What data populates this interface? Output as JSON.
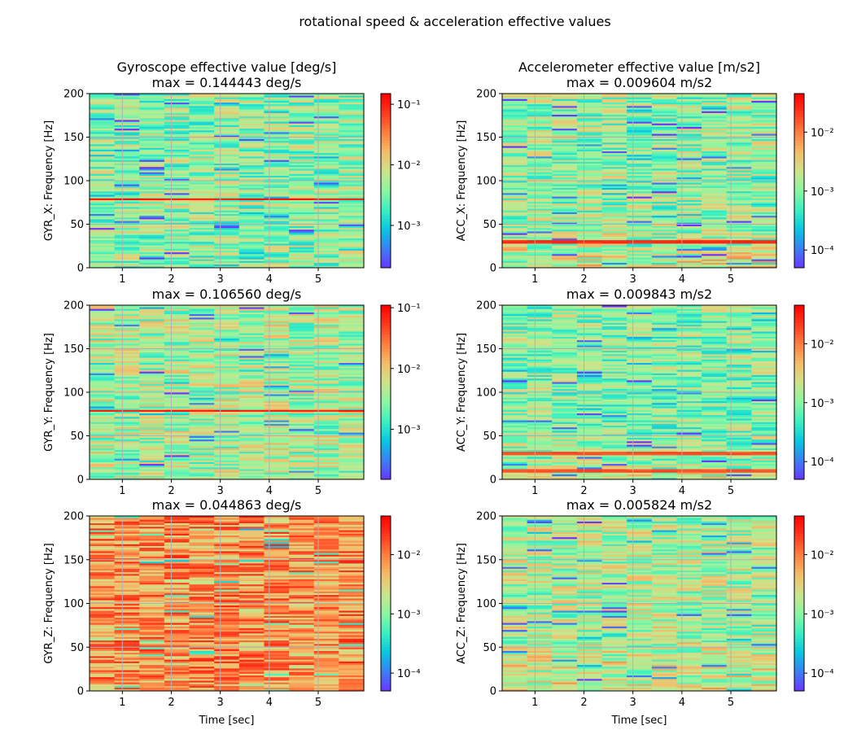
{
  "figure": {
    "suptitle": "rotational speed & acceleration effective values"
  },
  "colormap": [
    "#6a35ff",
    "#3a7ff5",
    "#06c8e0",
    "#3cf0c2",
    "#8cf6a0",
    "#cce48b",
    "#f3bd6a",
    "#ff7e40",
    "#ff3a1e",
    "#ff0000"
  ],
  "grid_color": "#b0b0b0",
  "chart_data": [
    {
      "type": "heatmap",
      "name": "gyr_x",
      "title": "Gyroscope effective value [deg/s]\nmax = 0.144443 deg/s",
      "xlabel": "",
      "ylabel": "GYR_X: Frequency [Hz]",
      "xlim": [
        0.33,
        5.93
      ],
      "ylim": [
        0,
        200
      ],
      "x_ticks": [
        1,
        2,
        3,
        4,
        5
      ],
      "y_ticks": [
        0,
        50,
        100,
        150,
        200
      ],
      "color_scale": "log",
      "clim": [
        0.0002,
        0.15
      ],
      "colorbar_ticks": [
        {
          "value": 0.1,
          "label": "10⁻¹"
        },
        {
          "value": 0.01,
          "label": "10⁻²"
        },
        {
          "value": 0.001,
          "label": "10⁻³"
        }
      ],
      "time_bins": 11,
      "base_level": 0.004,
      "peak_bands": [
        {
          "freq": 79,
          "level": 0.14
        }
      ],
      "seed": 11
    },
    {
      "type": "heatmap",
      "name": "acc_x",
      "title": "Accelerometer effective value [m/s2]\nmax = 0.009604 m/s2",
      "xlabel": "",
      "ylabel": "ACC_X: Frequency [Hz]",
      "xlim": [
        0.33,
        5.93
      ],
      "ylim": [
        0,
        200
      ],
      "x_ticks": [
        1,
        2,
        3,
        4,
        5
      ],
      "y_ticks": [
        0,
        50,
        100,
        150,
        200
      ],
      "color_scale": "log",
      "clim": [
        5e-05,
        0.045
      ],
      "colorbar_ticks": [
        {
          "value": 0.01,
          "label": "10⁻²"
        },
        {
          "value": 0.001,
          "label": "10⁻³"
        },
        {
          "value": 0.0001,
          "label": "10⁻⁴"
        }
      ],
      "time_bins": 11,
      "base_level": 0.0012,
      "peak_bands": [
        {
          "freq": 30,
          "level": 0.03
        }
      ],
      "low_freq_boost": 2.5,
      "seed": 23
    },
    {
      "type": "heatmap",
      "name": "gyr_y",
      "title": "max = 0.106560 deg/s",
      "xlabel": "",
      "ylabel": "GYR_Y: Frequency [Hz]",
      "xlim": [
        0.33,
        5.93
      ],
      "ylim": [
        0,
        200
      ],
      "x_ticks": [
        1,
        2,
        3,
        4,
        5
      ],
      "y_ticks": [
        0,
        50,
        100,
        150,
        200
      ],
      "color_scale": "log",
      "clim": [
        0.00015,
        0.11
      ],
      "colorbar_ticks": [
        {
          "value": 0.1,
          "label": "10⁻¹"
        },
        {
          "value": 0.01,
          "label": "10⁻²"
        },
        {
          "value": 0.001,
          "label": "10⁻³"
        }
      ],
      "time_bins": 11,
      "base_level": 0.004,
      "peak_bands": [
        {
          "freq": 79,
          "level": 0.1
        }
      ],
      "seed": 37
    },
    {
      "type": "heatmap",
      "name": "acc_y",
      "title": "max = 0.009843 m/s2",
      "xlabel": "",
      "ylabel": "ACC_Y: Frequency [Hz]",
      "xlim": [
        0.33,
        5.93
      ],
      "ylim": [
        0,
        200
      ],
      "x_ticks": [
        1,
        2,
        3,
        4,
        5
      ],
      "y_ticks": [
        0,
        50,
        100,
        150,
        200
      ],
      "color_scale": "log",
      "clim": [
        5e-05,
        0.045
      ],
      "colorbar_ticks": [
        {
          "value": 0.01,
          "label": "10⁻²"
        },
        {
          "value": 0.001,
          "label": "10⁻³"
        },
        {
          "value": 0.0001,
          "label": "10⁻⁴"
        }
      ],
      "time_bins": 11,
      "base_level": 0.001,
      "peak_bands": [
        {
          "freq": 30,
          "level": 0.02
        },
        {
          "freq": 10,
          "level": 0.02
        }
      ],
      "low_freq_boost": 2.0,
      "seed": 41
    },
    {
      "type": "heatmap",
      "name": "gyr_z",
      "title": "max = 0.044863 deg/s",
      "xlabel": "Time [sec]",
      "ylabel": "GYR_Z: Frequency [Hz]",
      "xlim": [
        0.33,
        5.93
      ],
      "ylim": [
        0,
        200
      ],
      "x_ticks": [
        1,
        2,
        3,
        4,
        5
      ],
      "y_ticks": [
        0,
        50,
        100,
        150,
        200
      ],
      "color_scale": "log",
      "clim": [
        5e-05,
        0.045
      ],
      "colorbar_ticks": [
        {
          "value": 0.01,
          "label": "10⁻²"
        },
        {
          "value": 0.001,
          "label": "10⁻³"
        },
        {
          "value": 0.0001,
          "label": "10⁻⁴"
        }
      ],
      "time_bins": 11,
      "base_level": 0.008,
      "peak_bands": [],
      "seed": 53
    },
    {
      "type": "heatmap",
      "name": "acc_z",
      "title": "max = 0.005824 m/s2",
      "xlabel": "Time [sec]",
      "ylabel": "ACC_Z: Frequency [Hz]",
      "xlim": [
        0.33,
        5.93
      ],
      "ylim": [
        0,
        200
      ],
      "x_ticks": [
        1,
        2,
        3,
        4,
        5
      ],
      "y_ticks": [
        0,
        50,
        100,
        150,
        200
      ],
      "color_scale": "log",
      "clim": [
        5e-05,
        0.045
      ],
      "colorbar_ticks": [
        {
          "value": 0.01,
          "label": "10⁻²"
        },
        {
          "value": 0.001,
          "label": "10⁻³"
        },
        {
          "value": 0.0001,
          "label": "10⁻⁴"
        }
      ],
      "time_bins": 11,
      "base_level": 0.0015,
      "peak_bands": [],
      "low_freq_boost": 2.0,
      "seed": 67
    }
  ]
}
